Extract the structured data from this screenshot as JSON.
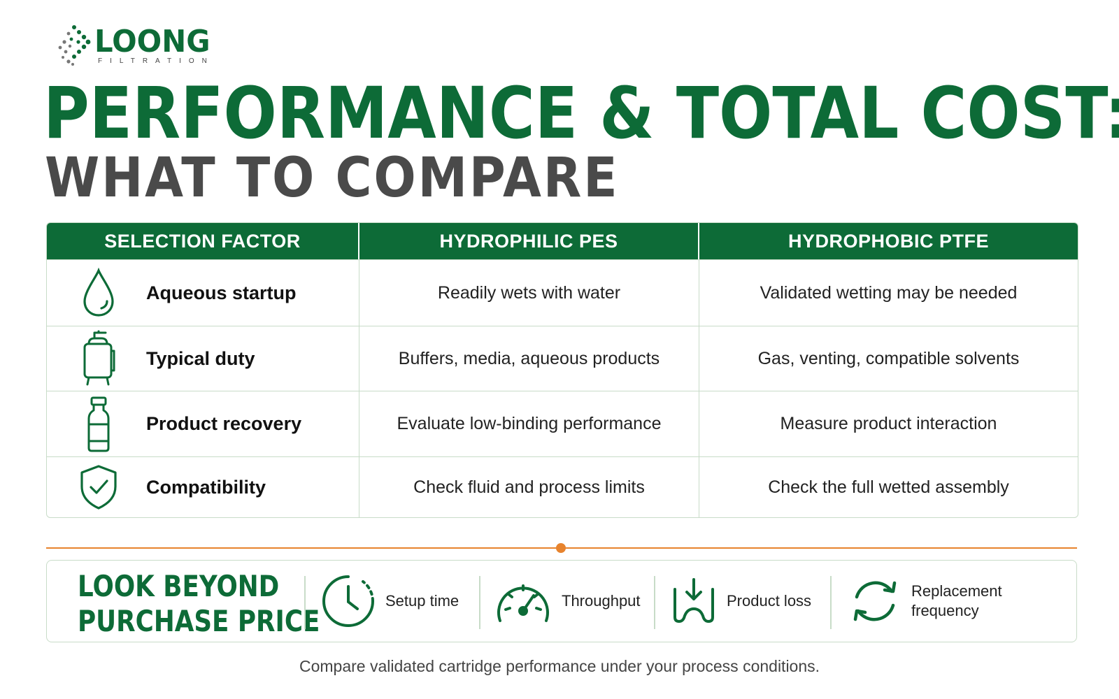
{
  "brand": {
    "name": "LOONG",
    "sub": "FILTRATION",
    "color": "#0d6b37",
    "logo_icon": "dot-arrow-logo-icon"
  },
  "title": {
    "line1": "PERFORMANCE & TOTAL COST:",
    "line2": "WHAT TO COMPARE"
  },
  "table": {
    "headers": [
      "SELECTION FACTOR",
      "HYDROPHILIC PES",
      "HYDROPHOBIC PTFE"
    ],
    "rows": [
      {
        "icon": "water-drop-icon",
        "factor": "Aqueous startup",
        "pes": "Readily wets with water",
        "ptfe": "Validated wetting may be needed"
      },
      {
        "icon": "filter-housing-icon",
        "factor": "Typical duty",
        "pes": "Buffers, media, aqueous products",
        "ptfe": "Gas, venting, compatible solvents"
      },
      {
        "icon": "vial-icon",
        "factor": "Product recovery",
        "pes": "Evaluate low-binding performance",
        "ptfe": "Measure product interaction"
      },
      {
        "icon": "shield-check-icon",
        "factor": "Compatibility",
        "pes": "Check fluid and process limits",
        "ptfe": "Check the full wetted assembly"
      }
    ]
  },
  "cost_panel": {
    "title_line1": "LOOK BEYOND",
    "title_line2": "PURCHASE PRICE",
    "items": [
      {
        "icon": "clock-icon",
        "label": "Setup time"
      },
      {
        "icon": "gauge-icon",
        "label": "Throughput"
      },
      {
        "icon": "product-loss-icon",
        "label": "Product loss"
      },
      {
        "icon": "refresh-cycle-icon",
        "label_line1": "Replacement",
        "label_line2": "frequency"
      }
    ]
  },
  "footnote": "Compare validated cartridge performance under your process conditions.",
  "colors": {
    "accent_green": "#0d6b37",
    "accent_orange": "#e7832d",
    "border": "#c8dcc8",
    "subtitle_gray": "#4a4a4a"
  }
}
